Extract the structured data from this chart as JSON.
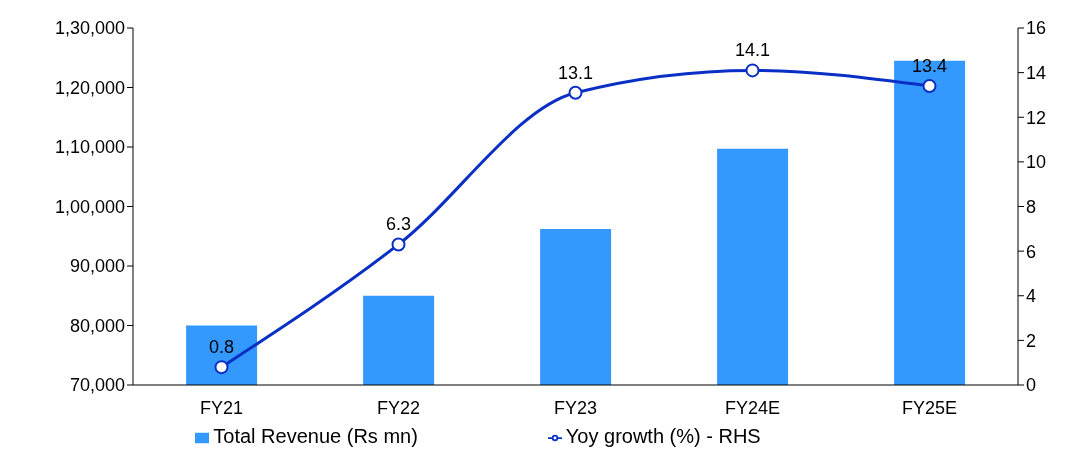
{
  "chart_data": {
    "type": "bar",
    "categories": [
      "FY21",
      "FY22",
      "FY23",
      "FY24E",
      "FY25E"
    ],
    "series": [
      {
        "name": "Total Revenue (Rs mn)",
        "color": "#3399ff",
        "values": [
          80000,
          85000,
          96200,
          109700,
          124500
        ]
      },
      {
        "name": "Yoy growth (%) - RHS",
        "type": "line",
        "axis": "y2",
        "color": "#0a2fc4",
        "marker": "circle",
        "values": [
          0.8,
          6.3,
          13.1,
          14.1,
          13.4
        ],
        "value_labels": [
          "0.8",
          "6.3",
          "13.1",
          "14.1",
          "13.4"
        ]
      }
    ],
    "ylim": [
      70000,
      130000
    ],
    "yticks": [
      {
        "value": 70000,
        "label": "70,000"
      },
      {
        "value": 80000,
        "label": "80,000"
      },
      {
        "value": 90000,
        "label": "90,000"
      },
      {
        "value": 100000,
        "label": "1,00,000"
      },
      {
        "value": 110000,
        "label": "1,10,000"
      },
      {
        "value": 120000,
        "label": "1,20,000"
      },
      {
        "value": 130000,
        "label": "1,30,000"
      }
    ],
    "y2lim": [
      0,
      16
    ],
    "y2ticks": [
      0,
      2,
      4,
      6,
      8,
      10,
      12,
      14,
      16
    ],
    "grid": false,
    "legend": "bottom"
  }
}
